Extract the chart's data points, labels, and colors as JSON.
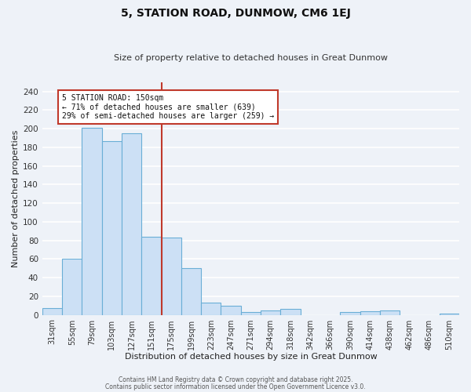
{
  "title": "5, STATION ROAD, DUNMOW, CM6 1EJ",
  "subtitle": "Size of property relative to detached houses in Great Dunmow",
  "xlabel": "Distribution of detached houses by size in Great Dunmow",
  "ylabel": "Number of detached properties",
  "bar_labels": [
    "31sqm",
    "55sqm",
    "79sqm",
    "103sqm",
    "127sqm",
    "151sqm",
    "175sqm",
    "199sqm",
    "223sqm",
    "247sqm",
    "271sqm",
    "294sqm",
    "318sqm",
    "342sqm",
    "366sqm",
    "390sqm",
    "414sqm",
    "438sqm",
    "462sqm",
    "486sqm",
    "510sqm"
  ],
  "bar_values": [
    7,
    60,
    201,
    187,
    195,
    84,
    83,
    50,
    13,
    10,
    3,
    5,
    6,
    0,
    0,
    3,
    4,
    5,
    0,
    0,
    1
  ],
  "bar_color": "#cce0f5",
  "bar_edge_color": "#6aaed6",
  "vline_idx": 5.5,
  "vline_color": "#c0392b",
  "ylim": [
    0,
    250
  ],
  "yticks": [
    0,
    20,
    40,
    60,
    80,
    100,
    120,
    140,
    160,
    180,
    200,
    220,
    240
  ],
  "annotation_title": "5 STATION ROAD: 150sqm",
  "annotation_line1": "← 71% of detached houses are smaller (639)",
  "annotation_line2": "29% of semi-detached houses are larger (259) →",
  "annotation_box_color": "#c0392b",
  "footnote1": "Contains HM Land Registry data © Crown copyright and database right 2025.",
  "footnote2": "Contains public sector information licensed under the Open Government Licence v3.0.",
  "bg_color": "#eef2f8",
  "grid_color": "#ffffff"
}
